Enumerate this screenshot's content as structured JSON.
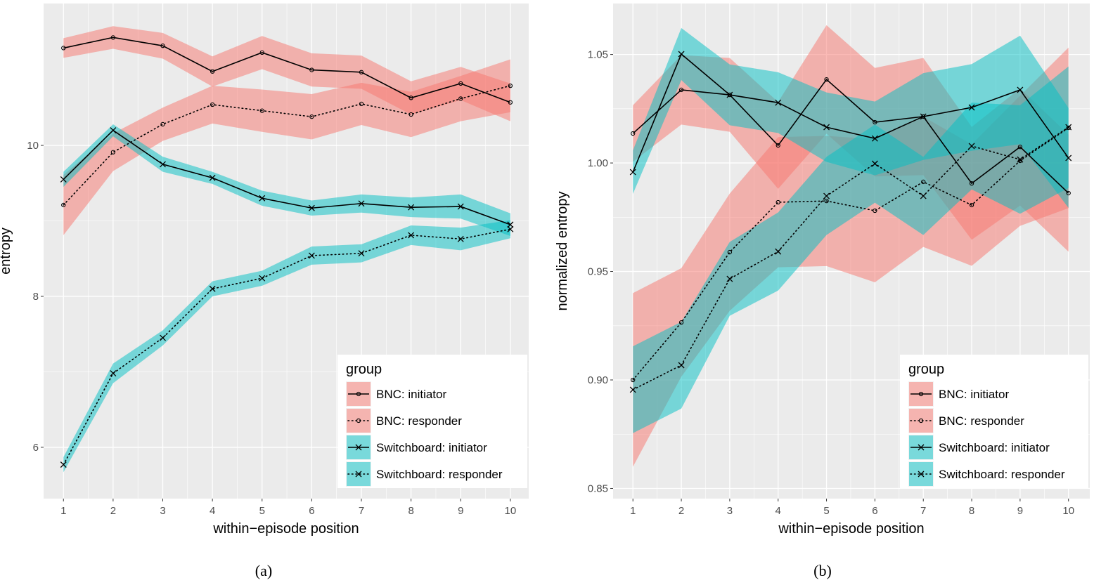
{
  "colors": {
    "BNC": "#F8766D",
    "Switchboard": "#00BFC4",
    "panel_bg": "#EBEBEB"
  },
  "chart_data": [
    {
      "type": "line",
      "caption": "(a)",
      "xlabel": "within−episode position",
      "ylabel": "entropy",
      "x": [
        1,
        2,
        3,
        4,
        5,
        6,
        7,
        8,
        9,
        10
      ],
      "xticks": [
        1,
        2,
        3,
        4,
        5,
        6,
        7,
        8,
        9,
        10
      ],
      "yticks": [
        6,
        8,
        10
      ],
      "xlim": [
        0.6,
        10.37
      ],
      "ylim": [
        5.32,
        11.88
      ],
      "grid": true,
      "legend": {
        "title": "group",
        "position": "bottom-right"
      },
      "series": [
        {
          "name": "BNC: initiator",
          "corpus": "BNC",
          "linetype": "solid",
          "marker": "circle",
          "values": [
            11.29,
            11.43,
            11.32,
            10.98,
            11.23,
            11.0,
            10.97,
            10.63,
            10.82,
            10.57
          ],
          "ci_halfwidth": [
            0.13,
            0.15,
            0.17,
            0.2,
            0.22,
            0.22,
            0.22,
            0.22,
            0.22,
            0.25
          ]
        },
        {
          "name": "BNC: responder",
          "corpus": "BNC",
          "linetype": "dotted",
          "marker": "circle",
          "values": [
            9.21,
            9.91,
            10.28,
            10.54,
            10.46,
            10.38,
            10.55,
            10.41,
            10.62,
            10.79
          ],
          "ci_halfwidth": [
            0.4,
            0.25,
            0.22,
            0.25,
            0.28,
            0.3,
            0.28,
            0.3,
            0.3,
            0.35
          ]
        },
        {
          "name": "Switchboard: initiator",
          "corpus": "Switchboard",
          "linetype": "solid",
          "marker": "x",
          "values": [
            9.55,
            10.2,
            9.75,
            9.57,
            9.3,
            9.17,
            9.23,
            9.18,
            9.19,
            8.95
          ],
          "ci_halfwidth": [
            0.1,
            0.08,
            0.1,
            0.08,
            0.1,
            0.1,
            0.12,
            0.13,
            0.16,
            0.15
          ]
        },
        {
          "name": "Switchboard: responder",
          "corpus": "Switchboard",
          "linetype": "dotted",
          "marker": "x",
          "values": [
            5.77,
            6.98,
            7.45,
            8.1,
            8.24,
            8.54,
            8.57,
            8.81,
            8.76,
            8.89
          ],
          "ci_halfwidth": [
            0.1,
            0.13,
            0.1,
            0.1,
            0.1,
            0.12,
            0.12,
            0.13,
            0.15,
            0.12
          ]
        }
      ]
    },
    {
      "type": "line",
      "caption": "(b)",
      "xlabel": "within−episode position",
      "ylabel": "normalized entropy",
      "x": [
        1,
        2,
        3,
        4,
        5,
        6,
        7,
        8,
        9,
        10
      ],
      "xticks": [
        1,
        2,
        3,
        4,
        5,
        6,
        7,
        8,
        9,
        10
      ],
      "yticks": [
        0.85,
        0.9,
        0.95,
        1.0,
        1.05
      ],
      "ytick_labels": [
        "0.85",
        "0.90",
        "0.95",
        "1.00",
        "1.05"
      ],
      "xlim": [
        0.59,
        10.44
      ],
      "ylim": [
        0.8453,
        1.0735
      ],
      "grid": true,
      "legend": {
        "title": "group",
        "position": "bottom-right"
      },
      "series": [
        {
          "name": "BNC: initiator",
          "corpus": "BNC",
          "linetype": "solid",
          "marker": "circle",
          "values": [
            1.0136,
            1.0337,
            1.0314,
            1.0081,
            1.0385,
            1.0188,
            1.0214,
            0.9906,
            1.0074,
            0.9861
          ],
          "ci_halfwidth": [
            0.013,
            0.016,
            0.017,
            0.02,
            0.025,
            0.025,
            0.027,
            0.026,
            0.027,
            0.027
          ]
        },
        {
          "name": "BNC: responder",
          "corpus": "BNC",
          "linetype": "dotted",
          "marker": "circle",
          "values": [
            0.9,
            0.9265,
            0.9589,
            0.9819,
            0.9825,
            0.978,
            0.9913,
            0.9806,
            1.001,
            1.0162
          ],
          "ci_halfwidth": [
            0.04,
            0.025,
            0.027,
            0.03,
            0.03,
            0.033,
            0.03,
            0.028,
            0.03,
            0.037
          ]
        },
        {
          "name": "Switchboard: initiator",
          "corpus": "Switchboard",
          "linetype": "solid",
          "marker": "x",
          "values": [
            0.9958,
            1.0502,
            1.0314,
            1.0278,
            1.0165,
            1.0113,
            1.0214,
            1.0256,
            1.0337,
            1.0023
          ],
          "ci_halfwidth": [
            0.01,
            0.012,
            0.014,
            0.014,
            0.016,
            0.017,
            0.02,
            0.02,
            0.025,
            0.023
          ]
        },
        {
          "name": "Switchboard: responder",
          "corpus": "Switchboard",
          "linetype": "dotted",
          "marker": "x",
          "values": [
            0.8955,
            0.9068,
            0.9466,
            0.9592,
            0.9848,
            0.9997,
            0.9848,
            1.0078,
            1.0016,
            1.0165
          ],
          "ci_halfwidth": [
            0.02,
            0.02,
            0.017,
            0.018,
            0.018,
            0.018,
            0.018,
            0.02,
            0.025,
            0.028
          ]
        }
      ]
    }
  ]
}
